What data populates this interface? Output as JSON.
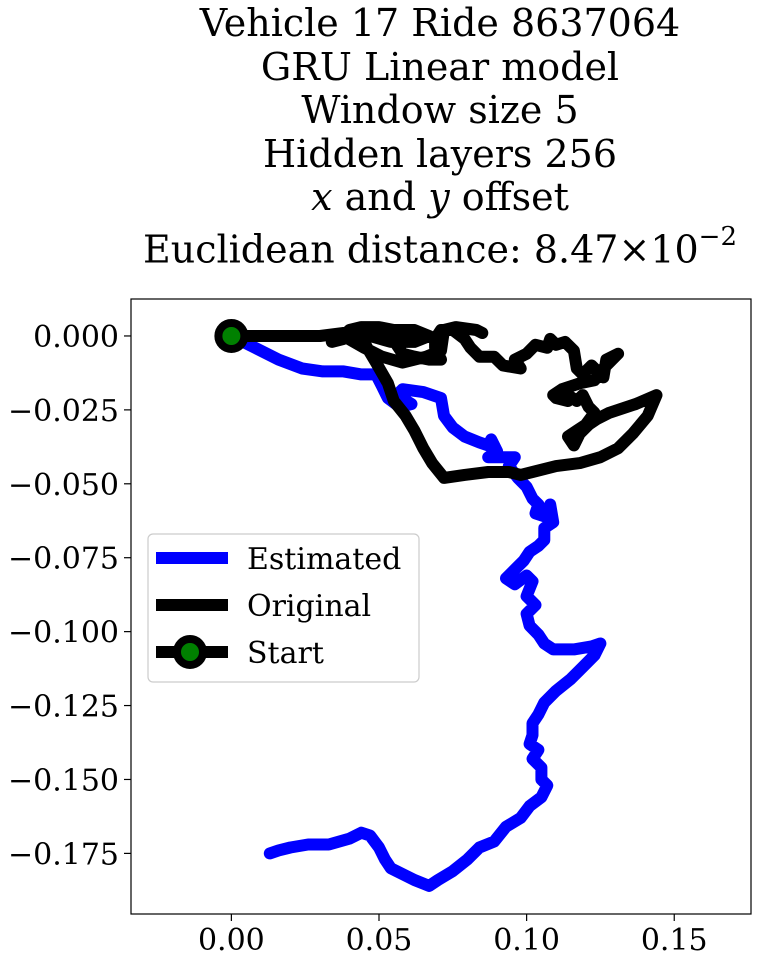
{
  "title_lines": [
    "Vehicle 17 Ride 8637064",
    "GRU Linear model",
    "Window size 5",
    "Hidden layers 256"
  ],
  "offset_line": {
    "var_x": "x",
    "and": " and ",
    "var_y": "y",
    "rest": " offset"
  },
  "distance_line": {
    "prefix": "Euclidean distance: ",
    "mantissa": "8.47",
    "times": "×",
    "base": "10",
    "exponent": "−2"
  },
  "chart_data": {
    "type": "line",
    "xlim": [
      -0.034,
      0.176
    ],
    "ylim": [
      -0.1955,
      0.0125
    ],
    "x_ticks": [
      0.0,
      0.05,
      0.1,
      0.15
    ],
    "x_tick_labels": [
      "0.00",
      "0.05",
      "0.10",
      "0.15"
    ],
    "y_ticks": [
      0.0,
      -0.025,
      -0.05,
      -0.075,
      -0.1,
      -0.125,
      -0.15,
      -0.175
    ],
    "y_tick_labels": [
      "0.000",
      "−0.025",
      "−0.050",
      "−0.075",
      "−0.100",
      "−0.125",
      "−0.150",
      "−0.175"
    ],
    "grid": false,
    "legend_placement": "center-left",
    "series": [
      {
        "name": "Estimated",
        "color": "#0000ff",
        "points": [
          [
            0.0,
            0.0
          ],
          [
            0.008,
            -0.004
          ],
          [
            0.016,
            -0.008
          ],
          [
            0.024,
            -0.011
          ],
          [
            0.031,
            -0.012
          ],
          [
            0.038,
            -0.012
          ],
          [
            0.044,
            -0.013
          ],
          [
            0.049,
            -0.013
          ],
          [
            0.051,
            -0.017
          ],
          [
            0.053,
            -0.021
          ],
          [
            0.057,
            -0.024
          ],
          [
            0.061,
            -0.023
          ],
          [
            0.056,
            -0.02
          ],
          [
            0.058,
            -0.018
          ],
          [
            0.065,
            -0.019
          ],
          [
            0.071,
            -0.021
          ],
          [
            0.072,
            -0.027
          ],
          [
            0.075,
            -0.031
          ],
          [
            0.079,
            -0.034
          ],
          [
            0.084,
            -0.036
          ],
          [
            0.087,
            -0.037
          ],
          [
            0.088,
            -0.035
          ],
          [
            0.09,
            -0.039
          ],
          [
            0.087,
            -0.041
          ],
          [
            0.092,
            -0.041
          ],
          [
            0.096,
            -0.041
          ],
          [
            0.094,
            -0.044
          ],
          [
            0.097,
            -0.048
          ],
          [
            0.1,
            -0.051
          ],
          [
            0.102,
            -0.055
          ],
          [
            0.104,
            -0.057
          ],
          [
            0.103,
            -0.06
          ],
          [
            0.106,
            -0.061
          ],
          [
            0.108,
            -0.057
          ],
          [
            0.109,
            -0.063
          ],
          [
            0.106,
            -0.065
          ],
          [
            0.106,
            -0.069
          ],
          [
            0.104,
            -0.071
          ],
          [
            0.101,
            -0.073
          ],
          [
            0.099,
            -0.076
          ],
          [
            0.096,
            -0.079
          ],
          [
            0.093,
            -0.082
          ],
          [
            0.096,
            -0.084
          ],
          [
            0.1,
            -0.081
          ],
          [
            0.102,
            -0.083
          ],
          [
            0.1,
            -0.088
          ],
          [
            0.103,
            -0.091
          ],
          [
            0.1,
            -0.094
          ],
          [
            0.101,
            -0.098
          ],
          [
            0.104,
            -0.101
          ],
          [
            0.106,
            -0.104
          ],
          [
            0.109,
            -0.106
          ],
          [
            0.116,
            -0.106
          ],
          [
            0.122,
            -0.105
          ],
          [
            0.125,
            -0.104
          ],
          [
            0.123,
            -0.108
          ],
          [
            0.119,
            -0.112
          ],
          [
            0.115,
            -0.116
          ],
          [
            0.11,
            -0.12
          ],
          [
            0.106,
            -0.124
          ],
          [
            0.104,
            -0.128
          ],
          [
            0.102,
            -0.131
          ],
          [
            0.102,
            -0.135
          ],
          [
            0.101,
            -0.138
          ],
          [
            0.104,
            -0.14
          ],
          [
            0.102,
            -0.143
          ],
          [
            0.105,
            -0.146
          ],
          [
            0.105,
            -0.15
          ],
          [
            0.107,
            -0.152
          ],
          [
            0.105,
            -0.156
          ],
          [
            0.101,
            -0.159
          ],
          [
            0.098,
            -0.163
          ],
          [
            0.093,
            -0.166
          ],
          [
            0.089,
            -0.171
          ],
          [
            0.084,
            -0.173
          ],
          [
            0.08,
            -0.177
          ],
          [
            0.075,
            -0.181
          ],
          [
            0.07,
            -0.184
          ],
          [
            0.067,
            -0.186
          ],
          [
            0.062,
            -0.184
          ],
          [
            0.058,
            -0.182
          ],
          [
            0.054,
            -0.18
          ],
          [
            0.052,
            -0.177
          ],
          [
            0.05,
            -0.173
          ],
          [
            0.047,
            -0.169
          ],
          [
            0.044,
            -0.168
          ],
          [
            0.04,
            -0.17
          ],
          [
            0.033,
            -0.172
          ],
          [
            0.026,
            -0.172
          ],
          [
            0.02,
            -0.173
          ],
          [
            0.016,
            -0.174
          ],
          [
            0.013,
            -0.175
          ]
        ]
      },
      {
        "name": "Original",
        "color": "#000000",
        "points": [
          [
            0.0,
            0.0
          ],
          [
            0.01,
            0.0
          ],
          [
            0.02,
            0.0
          ],
          [
            0.03,
            0.0
          ],
          [
            0.038,
            0.001
          ],
          [
            0.04,
            0.0
          ],
          [
            0.034,
            -0.002
          ],
          [
            0.038,
            -0.001
          ],
          [
            0.045,
            0.002
          ],
          [
            0.054,
            0.002
          ],
          [
            0.062,
            0.002
          ],
          [
            0.067,
            0.0
          ],
          [
            0.062,
            -0.002
          ],
          [
            0.054,
            -0.002
          ],
          [
            0.047,
            0.0
          ],
          [
            0.043,
            0.002
          ],
          [
            0.046,
            -0.004
          ],
          [
            0.049,
            -0.009
          ],
          [
            0.053,
            -0.016
          ],
          [
            0.055,
            -0.022
          ],
          [
            0.059,
            -0.027
          ],
          [
            0.062,
            -0.032
          ],
          [
            0.065,
            -0.038
          ],
          [
            0.068,
            -0.043
          ],
          [
            0.072,
            -0.048
          ],
          [
            0.079,
            -0.047
          ],
          [
            0.087,
            -0.046
          ],
          [
            0.094,
            -0.046
          ],
          [
            0.098,
            -0.047
          ],
          [
            0.102,
            -0.046
          ],
          [
            0.11,
            -0.044
          ],
          [
            0.118,
            -0.043
          ],
          [
            0.125,
            -0.041
          ],
          [
            0.131,
            -0.038
          ],
          [
            0.136,
            -0.033
          ],
          [
            0.141,
            -0.027
          ],
          [
            0.144,
            -0.02
          ],
          [
            0.137,
            -0.023
          ],
          [
            0.128,
            -0.026
          ],
          [
            0.124,
            -0.028
          ],
          [
            0.121,
            -0.03
          ],
          [
            0.118,
            -0.033
          ],
          [
            0.116,
            -0.037
          ],
          [
            0.114,
            -0.034
          ],
          [
            0.117,
            -0.032
          ],
          [
            0.12,
            -0.03
          ],
          [
            0.123,
            -0.026
          ],
          [
            0.121,
            -0.024
          ],
          [
            0.119,
            -0.02
          ],
          [
            0.117,
            -0.022
          ],
          [
            0.114,
            -0.02
          ],
          [
            0.112,
            -0.019
          ],
          [
            0.114,
            -0.022
          ],
          [
            0.11,
            -0.021
          ],
          [
            0.109,
            -0.02
          ],
          [
            0.112,
            -0.018
          ],
          [
            0.118,
            -0.016
          ],
          [
            0.123,
            -0.015
          ],
          [
            0.126,
            -0.011
          ],
          [
            0.131,
            -0.006
          ],
          [
            0.127,
            -0.008
          ],
          [
            0.126,
            -0.014
          ],
          [
            0.122,
            -0.01
          ],
          [
            0.119,
            -0.013
          ],
          [
            0.117,
            -0.011
          ],
          [
            0.116,
            -0.005
          ],
          [
            0.113,
            -0.002
          ],
          [
            0.11,
            -0.003
          ],
          [
            0.108,
            -0.001
          ],
          [
            0.107,
            -0.004
          ],
          [
            0.103,
            -0.003
          ],
          [
            0.1,
            -0.006
          ],
          [
            0.096,
            -0.008
          ],
          [
            0.098,
            -0.011
          ],
          [
            0.092,
            -0.01
          ],
          [
            0.089,
            -0.007
          ],
          [
            0.084,
            -0.007
          ],
          [
            0.081,
            -0.004
          ],
          [
            0.079,
            -0.001
          ],
          [
            0.075,
            0.002
          ],
          [
            0.071,
            0.002
          ],
          [
            0.069,
            -0.001
          ],
          [
            0.069,
            -0.004
          ],
          [
            0.071,
            -0.008
          ],
          [
            0.067,
            -0.008
          ],
          [
            0.062,
            -0.007
          ],
          [
            0.058,
            -0.006
          ],
          [
            0.056,
            -0.003
          ],
          [
            0.055,
            0.002
          ],
          [
            0.05,
            0.003
          ],
          [
            0.044,
            0.003
          ],
          [
            0.04,
            0.002
          ],
          [
            0.038,
            0.0
          ],
          [
            0.045,
            -0.004
          ],
          [
            0.051,
            -0.007
          ],
          [
            0.058,
            -0.009
          ],
          [
            0.066,
            -0.007
          ],
          [
            0.071,
            -0.005
          ],
          [
            0.072,
            0.002
          ],
          [
            0.076,
            0.003
          ],
          [
            0.083,
            0.002
          ],
          [
            0.085,
            0.001
          ]
        ]
      },
      {
        "name": "Start",
        "color": "#000000",
        "marker_face": "#008000",
        "points": [
          [
            0.0,
            0.0
          ]
        ]
      }
    ],
    "legend": {
      "entries": [
        "Estimated",
        "Original",
        "Start"
      ]
    }
  }
}
